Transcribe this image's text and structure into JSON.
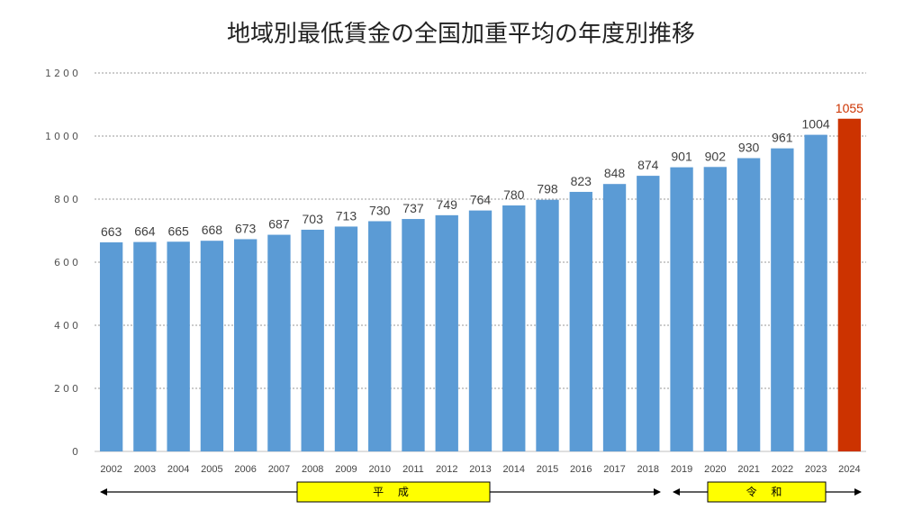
{
  "chart_data": {
    "type": "bar",
    "title": "地域別最低賃金の全国加重平均の年度別推移",
    "xlabel": "",
    "ylabel": "",
    "ylim": [
      0,
      1200
    ],
    "yticks": [
      "0",
      "200",
      "400",
      "600",
      "800",
      "1000",
      "1200"
    ],
    "grid": true,
    "categories": [
      "2002",
      "2003",
      "2004",
      "2005",
      "2006",
      "2007",
      "2008",
      "2009",
      "2010",
      "2011",
      "2012",
      "2013",
      "2014",
      "2015",
      "2016",
      "2017",
      "2018",
      "2019",
      "2020",
      "2021",
      "2022",
      "2023",
      "2024"
    ],
    "values": [
      663,
      664,
      665,
      668,
      673,
      687,
      703,
      713,
      730,
      737,
      749,
      764,
      780,
      798,
      823,
      848,
      874,
      901,
      902,
      930,
      961,
      1004,
      1055
    ],
    "colors": {
      "bar": "#5b9bd5",
      "highlight": "#cc3300",
      "grid": "#999999",
      "era_box": "#ffff00"
    },
    "highlight_category": "2024",
    "eras": [
      {
        "label": "平 成",
        "from": "2002",
        "to": "2018"
      },
      {
        "label": "令 和",
        "from": "2019",
        "to": "2024"
      }
    ]
  }
}
